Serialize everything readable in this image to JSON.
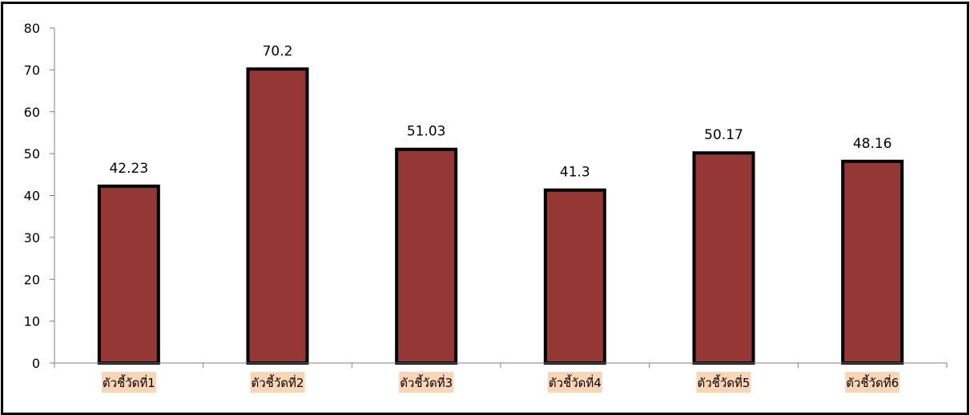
{
  "chart_data": {
    "type": "bar",
    "title": "",
    "xlabel": "",
    "ylabel": "",
    "categories": [
      "ตัวชี้วัดที่1",
      "ตัวชี้วัดที่2",
      "ตัวชี้วัดที่3",
      "ตัวชี้วัดที่4",
      "ตัวชี้วัดที่5",
      "ตัวชี้วัดที่6"
    ],
    "values": [
      42.23,
      70.2,
      51.03,
      41.3,
      50.17,
      48.16
    ],
    "data_labels": [
      "42.23",
      "70.2",
      "51.03",
      "41.3",
      "50.17",
      "48.16"
    ],
    "ylim": [
      0,
      80
    ],
    "yticks": [
      0,
      10,
      20,
      30,
      40,
      50,
      60,
      70,
      80
    ],
    "ytick_labels": [
      "0",
      "10",
      "20",
      "30",
      "40",
      "50",
      "60",
      "70",
      "80"
    ],
    "grid": false,
    "legend": "none",
    "colors": {
      "bar_fill": "#953735",
      "bar_outline": "#000000",
      "category_label_bg": "#FCD5B5",
      "axis": "#808080",
      "frame": "#000000"
    }
  }
}
